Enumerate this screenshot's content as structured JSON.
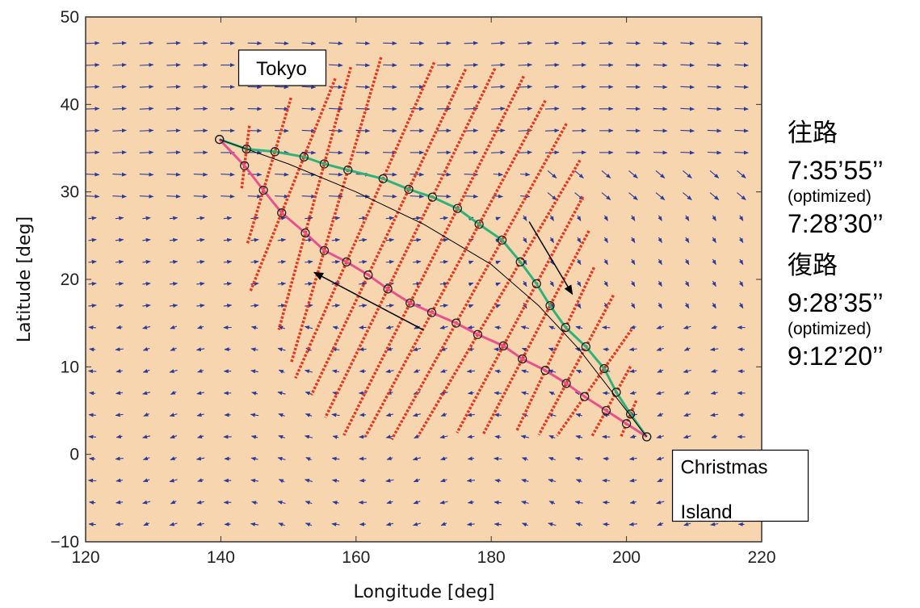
{
  "chart_data": {
    "type": "scatter",
    "xlabel": "Longitude [deg]",
    "ylabel": "Latitude [deg]",
    "xlim": [
      120,
      220
    ],
    "ylim": [
      -10,
      50
    ],
    "xticks": [
      120,
      140,
      160,
      180,
      200,
      220
    ],
    "yticks": [
      -10,
      0,
      10,
      20,
      30,
      40,
      50
    ],
    "background_color": "#F6D5AF",
    "grid": false,
    "annotations": [
      {
        "text": "Tokyo",
        "x": 143,
        "y": 44
      },
      {
        "text": "Christmas",
        "x": 208,
        "y": -2.2
      },
      {
        "text": "Island",
        "x": 208,
        "y": -6.2
      }
    ],
    "series": [
      {
        "color": "#2DB37A",
        "marker": "circle",
        "points": [
          [
            139.8,
            36.0
          ],
          [
            143.8,
            34.9
          ],
          [
            148.0,
            34.6
          ],
          [
            152.3,
            34.0
          ],
          [
            155.3,
            33.2
          ],
          [
            158.8,
            32.5
          ],
          [
            164.0,
            31.5
          ],
          [
            167.8,
            30.3
          ],
          [
            171.3,
            29.4
          ],
          [
            175.0,
            28.1
          ],
          [
            178.2,
            26.3
          ],
          [
            181.6,
            24.5
          ],
          [
            184.3,
            22.0
          ],
          [
            186.7,
            19.5
          ],
          [
            188.7,
            17.0
          ],
          [
            191.0,
            14.5
          ],
          [
            194.0,
            12.3
          ],
          [
            196.7,
            9.8
          ],
          [
            198.5,
            7.1
          ],
          [
            200.6,
            4.6
          ],
          [
            203.0,
            2.0
          ]
        ]
      },
      {
        "color": "#E8518D",
        "marker": "circle",
        "points": [
          [
            139.8,
            36.0
          ],
          [
            143.5,
            33.0
          ],
          [
            146.3,
            30.2
          ],
          [
            149.0,
            27.6
          ],
          [
            152.5,
            25.3
          ],
          [
            155.3,
            23.3
          ],
          [
            158.6,
            22.0
          ],
          [
            161.8,
            20.5
          ],
          [
            164.7,
            18.9
          ],
          [
            168.0,
            17.3
          ],
          [
            171.2,
            16.2
          ],
          [
            174.8,
            15.0
          ],
          [
            178.0,
            13.7
          ],
          [
            181.8,
            12.4
          ],
          [
            184.6,
            10.9
          ],
          [
            188.0,
            9.6
          ],
          [
            191.1,
            8.1
          ],
          [
            193.8,
            6.6
          ],
          [
            197.0,
            5.0
          ],
          [
            200.0,
            3.5
          ],
          [
            203.0,
            2.0
          ]
        ]
      },
      {
        "color": "#000000",
        "marker": "none",
        "points": [
          [
            139.8,
            36.0
          ],
          [
            150,
            33.2
          ],
          [
            160,
            30.0
          ],
          [
            170,
            26.3
          ],
          [
            180,
            21.7
          ],
          [
            187,
            17.0
          ],
          [
            193,
            12.0
          ],
          [
            198,
            7.0
          ],
          [
            203,
            2.0
          ]
        ]
      }
    ],
    "direction_arrows": [
      {
        "from": [
          185.6,
          26.6
        ],
        "to": [
          192.0,
          18.3
        ]
      },
      {
        "from": [
          170.0,
          14.2
        ],
        "to": [
          153.8,
          20.8
        ]
      }
    ]
  },
  "sidebar": {
    "outbound_label": "往路",
    "outbound_time": "7:35’55’’",
    "outbound_optimized_label": "(optimized)",
    "outbound_optimized_time": "7:28’30’’",
    "return_label": "復路",
    "return_time": "9:28’35’’",
    "return_optimized_label": "(optimized)",
    "return_optimized_time": "9:12’20’’"
  }
}
